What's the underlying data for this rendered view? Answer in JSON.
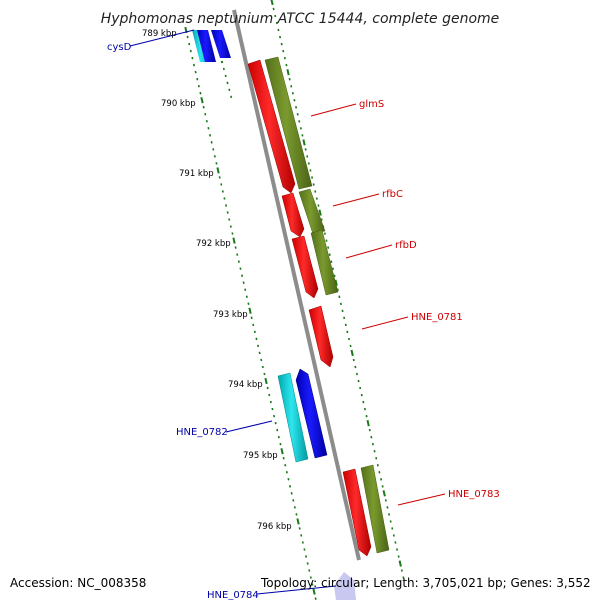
{
  "title": "Hyphomonas neptunium ATCC 15444, complete genome",
  "footer": {
    "accession": "Accession: NC_008358",
    "topology": "Topology: circular; Length: 3,705,021 bp; Genes: 3,552"
  },
  "colors": {
    "backbone": "#8c8c8c",
    "tick": "#1a7a1a",
    "forward_gene": "#ff1a1a",
    "forward_cds": "#6b8e23",
    "reverse_gene": "#0000ff",
    "reverse_cds": "#00cccc",
    "forward_label": "#cc0000",
    "reverse_label": "#0000aa"
  },
  "ticks": [
    "789 kbp",
    "790 kbp",
    "791 kbp",
    "792 kbp",
    "793 kbp",
    "794 kbp",
    "795 kbp",
    "796 kbp"
  ],
  "gene_labels": [
    "glmS",
    "rfbC",
    "rfbD",
    "HNE_0781",
    "HNE_0782",
    "HNE_0783",
    "cysD",
    "HNE_0784"
  ]
}
